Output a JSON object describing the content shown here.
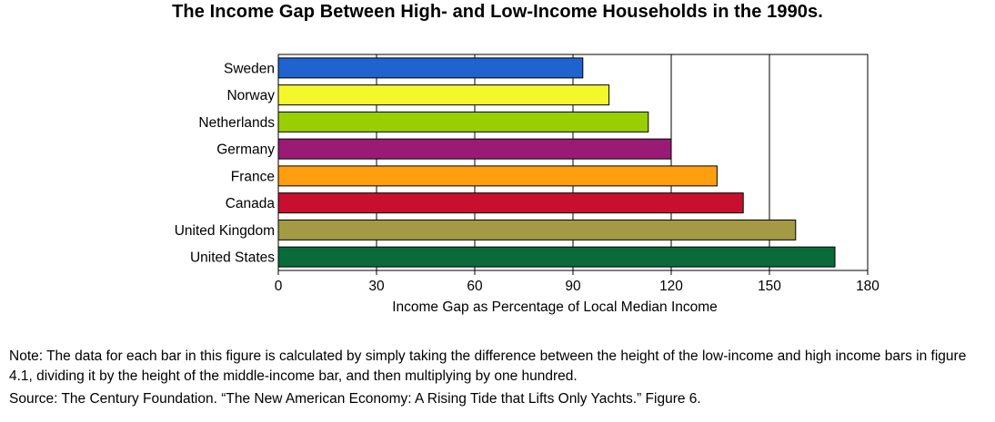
{
  "title": "The Income Gap Between High- and Low-Income Households in the 1990s.",
  "chart_data": {
    "type": "bar",
    "orientation": "horizontal",
    "categories": [
      "Sweden",
      "Norway",
      "Netherlands",
      "Germany",
      "France",
      "Canada",
      "United Kingdom",
      "United States"
    ],
    "values": [
      93,
      101,
      113,
      120,
      134,
      142,
      158,
      170
    ],
    "colors": [
      "#1f63cf",
      "#f4f72a",
      "#99cf00",
      "#991b73",
      "#ff9e0f",
      "#c8102e",
      "#a49a43",
      "#0a6b3a"
    ],
    "xlabel": "Income Gap as Percentage of Local Median Income",
    "xlim": [
      0,
      180
    ],
    "xticks": [
      0,
      30,
      60,
      90,
      120,
      150,
      180
    ],
    "grid": true
  },
  "note": "Note: The data for each bar in this figure is calculated by simply taking the difference between the height of the low-income and high income bars in figure 4.1, dividing it by the height of the middle-income bar, and then multiplying by one hundred.",
  "source": "Source: The Century Foundation. “The New American Economy: A Rising Tide that Lifts Only Yachts.”  Figure 6."
}
